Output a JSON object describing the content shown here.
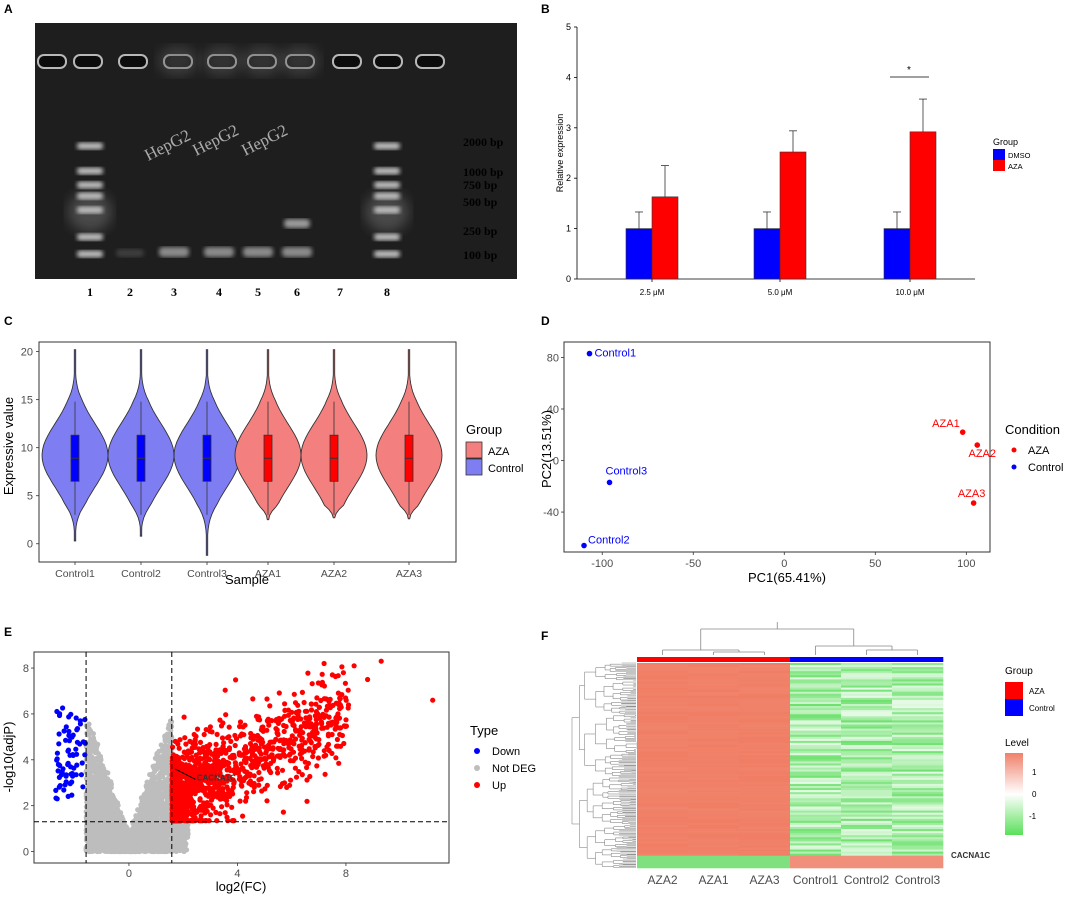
{
  "panels": [
    {
      "letter": "A"
    },
    {
      "letter": "B"
    },
    {
      "letter": "C"
    },
    {
      "letter": "D"
    },
    {
      "letter": "E"
    },
    {
      "letter": "F"
    }
  ],
  "panel_a": {
    "lane_labels": [
      "1",
      "2",
      "3",
      "4",
      "5",
      "6",
      "7",
      "8"
    ],
    "sample_labels": [
      "HepG2",
      "HepG2",
      "HepG2"
    ],
    "marker_labels": [
      "2000 bp",
      "1000 bp",
      "750 bp",
      "500 bp",
      "250 bp",
      "100 bp"
    ]
  },
  "colors": {
    "dmso": "#0000ff",
    "aza_bar": "#ff0000",
    "aza_violin": "#f47f7f",
    "control_violin": "#7e7ef2",
    "down": "#0000ff",
    "notdeg": "#bdbdbd",
    "up": "#ff0000",
    "heat_high": "#f0806a",
    "heat_low": "#5ae05a"
  },
  "chart_data": [
    {
      "id": "B",
      "type": "bar",
      "categories": [
        "2.5 μM",
        "5.0 μM",
        "10.0 μM"
      ],
      "series": [
        {
          "name": "DMSO",
          "values": [
            1.0,
            1.0,
            1.0
          ],
          "errors": [
            0.33,
            0.33,
            0.33
          ]
        },
        {
          "name": "AZA",
          "values": [
            1.63,
            2.52,
            2.92
          ],
          "errors": [
            0.62,
            0.42,
            0.65
          ]
        }
      ],
      "ylabel": "Relative expression",
      "yticks": [
        "0",
        "1",
        "2",
        "3",
        "4",
        "5"
      ],
      "ylim": [
        0,
        5
      ],
      "legend_title": "Group",
      "significance": {
        "category": "10.0 μM",
        "label": "*"
      }
    },
    {
      "id": "C",
      "type": "violin",
      "categories": [
        "Control1",
        "Control2",
        "Control3",
        "AZA1",
        "AZA2",
        "AZA3"
      ],
      "groups": [
        "Control",
        "Control",
        "Control",
        "AZA",
        "AZA",
        "AZA"
      ],
      "stats": [
        {
          "min": 0.3,
          "q1": 6.5,
          "median": 8.9,
          "q3": 11.3,
          "max": 20.2
        },
        {
          "min": 0.8,
          "q1": 6.5,
          "median": 8.9,
          "q3": 11.3,
          "max": 20.2
        },
        {
          "min": -1.2,
          "q1": 6.5,
          "median": 8.9,
          "q3": 11.3,
          "max": 20.2
        },
        {
          "min": 2.5,
          "q1": 6.5,
          "median": 8.9,
          "q3": 11.3,
          "max": 20.2
        },
        {
          "min": 2.7,
          "q1": 6.5,
          "median": 8.9,
          "q3": 11.3,
          "max": 20.2
        },
        {
          "min": 2.6,
          "q1": 6.5,
          "median": 8.9,
          "q3": 11.3,
          "max": 20.2
        }
      ],
      "xlabel": "Sample",
      "ylabel": "Expressive value",
      "yticks": [
        "0",
        "5",
        "10",
        "15",
        "20"
      ],
      "ylim": [
        -1.9,
        21
      ],
      "legend_title": "Group",
      "legend": [
        "AZA",
        "Control"
      ]
    },
    {
      "id": "D",
      "type": "scatter",
      "points": [
        {
          "label": "Control1",
          "x": -107,
          "y": 83,
          "condition": "Control"
        },
        {
          "label": "Control3",
          "x": -96,
          "y": -17,
          "condition": "Control"
        },
        {
          "label": "Control2",
          "x": -110,
          "y": -66,
          "condition": "Control"
        },
        {
          "label": "AZA1",
          "x": 98,
          "y": 22,
          "condition": "AZA"
        },
        {
          "label": "AZA2",
          "x": 106,
          "y": 12,
          "condition": "AZA"
        },
        {
          "label": "AZA3",
          "x": 104,
          "y": -33,
          "condition": "AZA"
        }
      ],
      "xlabel": "PC1(65.41%)",
      "ylabel": "PC2(13.51%)",
      "xticks": [
        "-100",
        "-50",
        "0",
        "50",
        "100"
      ],
      "yticks": [
        "80",
        "40",
        "0",
        "-40"
      ],
      "xlim": [
        -121,
        113
      ],
      "ylim": [
        -71,
        92
      ],
      "legend_title": "Condition",
      "legend": [
        "AZA",
        "Control"
      ]
    },
    {
      "id": "E",
      "type": "scatter",
      "xlabel": "log2(FC)",
      "ylabel": "-log10(adjP)",
      "xticks": [
        "0",
        "4",
        "8"
      ],
      "yticks": [
        "0",
        "2",
        "4",
        "6",
        "8"
      ],
      "xlim": [
        -3.5,
        11.8
      ],
      "ylim": [
        -0.5,
        8.7
      ],
      "thresholds": {
        "fc": [
          -1.58,
          1.58
        ],
        "p": 1.3
      },
      "annotation": {
        "label": "CACNA1C",
        "x": 2.4,
        "y": 3.2
      },
      "legend_title": "Type",
      "legend": [
        "Down",
        "Not DEG",
        "Up"
      ]
    },
    {
      "id": "F",
      "type": "heatmap",
      "columns": [
        "AZA2",
        "AZA1",
        "AZA3",
        "Control1",
        "Control2",
        "Control3"
      ],
      "column_groups": [
        "AZA",
        "AZA",
        "AZA",
        "Control",
        "Control",
        "Control"
      ],
      "row_label": "CACNA1C",
      "legend_title": "Group",
      "legend": [
        "AZA",
        "Control"
      ],
      "scale_title": "Level",
      "scale_ticks": [
        "1",
        "0",
        "-1"
      ]
    }
  ]
}
